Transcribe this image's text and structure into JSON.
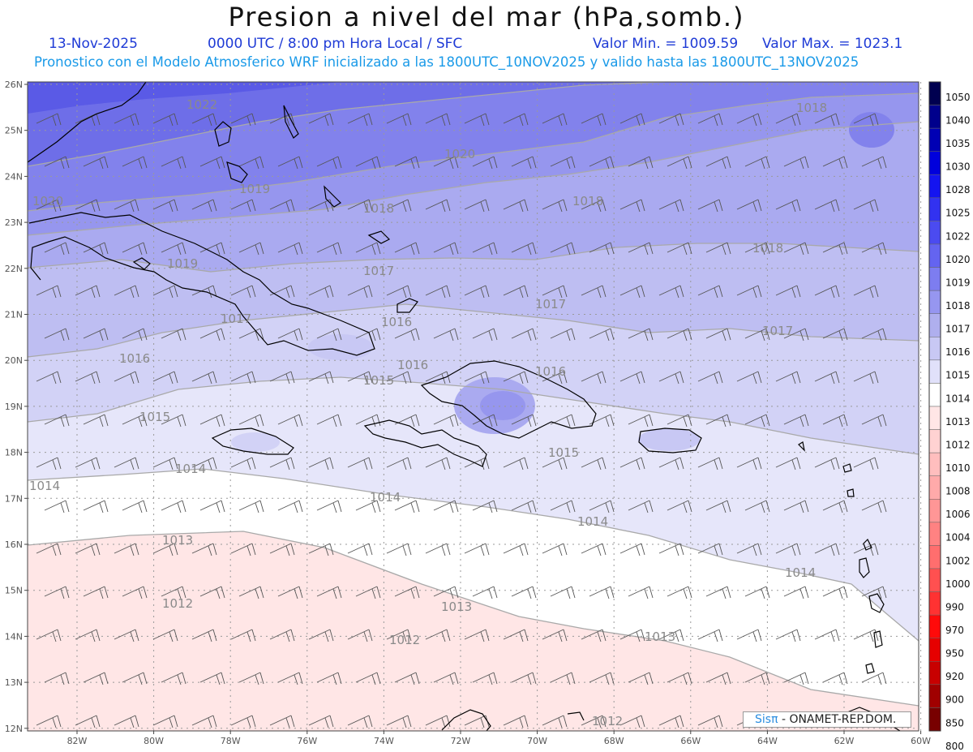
{
  "header": {
    "title": "Presion a nivel del mar (hPa,somb.)",
    "date": "13-Nov-2025",
    "time": "0000 UTC / 8:00 pm Hora Local / SFC",
    "min": "Valor Min. = 1009.59",
    "max": "Valor Max. = 1023.1",
    "model_line": "Pronostico con el Modelo Atmosferico WRF inicializado a las 1800UTC_10NOV2025 y valido hasta las  1800UTC_13NOV2025"
  },
  "axes": {
    "lat_labels": [
      "26N",
      "25N",
      "24N",
      "23N",
      "22N",
      "21N",
      "20N",
      "19N",
      "18N",
      "17N",
      "16N",
      "15N",
      "14N",
      "13N",
      "12N"
    ],
    "lon_labels": [
      "82W",
      "80W",
      "78W",
      "76W",
      "74W",
      "72W",
      "70W",
      "68W",
      "66W",
      "64W",
      "62W",
      "60W"
    ]
  },
  "isobar_labels": [
    {
      "text": "1022"
    },
    {
      "text": "1020"
    },
    {
      "text": "1020"
    },
    {
      "text": "1019"
    },
    {
      "text": "1018"
    },
    {
      "text": "1018"
    },
    {
      "text": "1018"
    },
    {
      "text": "1017"
    },
    {
      "text": "1017"
    },
    {
      "text": "1017"
    },
    {
      "text": "1017"
    },
    {
      "text": "1016"
    },
    {
      "text": "1016"
    },
    {
      "text": "1016"
    },
    {
      "text": "1016"
    },
    {
      "text": "1015"
    },
    {
      "text": "1015"
    },
    {
      "text": "1015"
    },
    {
      "text": "1014"
    },
    {
      "text": "1014"
    },
    {
      "text": "1014"
    },
    {
      "text": "1014"
    },
    {
      "text": "1014"
    },
    {
      "text": "1013"
    },
    {
      "text": "1013"
    },
    {
      "text": "1013"
    },
    {
      "text": "1012"
    },
    {
      "text": "1012"
    },
    {
      "text": "1012"
    },
    {
      "text": "1019"
    },
    {
      "text": "1018"
    }
  ],
  "colorbar": {
    "levels": [
      "1050",
      "1040",
      "1035",
      "1030",
      "1028",
      "1025",
      "1022",
      "1020",
      "1019",
      "1018",
      "1017",
      "1016",
      "1015",
      "1014",
      "1013",
      "1012",
      "1010",
      "1008",
      "1006",
      "1004",
      "1002",
      "1000",
      "990",
      "970",
      "950",
      "920",
      "900",
      "850",
      "800"
    ],
    "colors": [
      "#000050",
      "#00008c",
      "#0000b4",
      "#0000dc",
      "#1414f0",
      "#3232f0",
      "#4b4bf0",
      "#6464f0",
      "#7d7df0",
      "#9696f0",
      "#afafee",
      "#c8c8f4",
      "#e1e1fa",
      "#ffffff",
      "#ffe6e6",
      "#ffd2d2",
      "#ffbebe",
      "#ffaaaa",
      "#ff9696",
      "#ff8282",
      "#ff6e6e",
      "#ff5050",
      "#ff3232",
      "#ff0a0a",
      "#e60000",
      "#c80000",
      "#a00000",
      "#780000"
    ]
  },
  "logo": {
    "sis": "Sisπ",
    "org": "- ONAMET-REP.DOM."
  },
  "colors": {
    "title": "#111111",
    "date_line": "#1f3bd6",
    "model_line": "#1a9ae8"
  }
}
